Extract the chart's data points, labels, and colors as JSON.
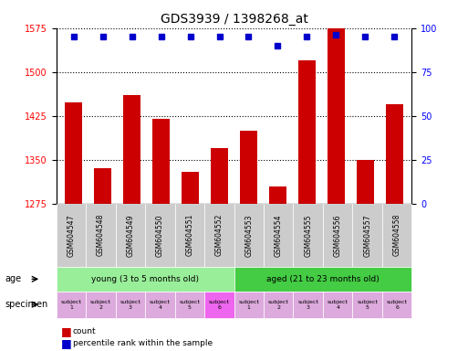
{
  "title": "GDS3939 / 1398268_at",
  "samples": [
    "GSM604547",
    "GSM604548",
    "GSM604549",
    "GSM604550",
    "GSM604551",
    "GSM604552",
    "GSM604553",
    "GSM604554",
    "GSM604555",
    "GSM604556",
    "GSM604557",
    "GSM604558"
  ],
  "counts": [
    1448,
    1335,
    1460,
    1420,
    1330,
    1370,
    1400,
    1305,
    1520,
    1580,
    1350,
    1445
  ],
  "percentile_ranks": [
    95,
    95,
    95,
    95,
    95,
    95,
    95,
    90,
    95,
    96,
    95,
    95
  ],
  "ylim_left": [
    1275,
    1575
  ],
  "ylim_right": [
    0,
    100
  ],
  "yticks_left": [
    1275,
    1350,
    1425,
    1500,
    1575
  ],
  "yticks_right": [
    0,
    25,
    50,
    75,
    100
  ],
  "bar_color": "#cc0000",
  "dot_color": "#0000cc",
  "age_groups": [
    {
      "label": "young (3 to 5 months old)",
      "start": 0,
      "end": 6,
      "color": "#99ee99"
    },
    {
      "label": "aged (21 to 23 months old)",
      "start": 6,
      "end": 12,
      "color": "#44cc44"
    }
  ],
  "specimen_colors": [
    "#ddaadd",
    "#ddaadd",
    "#ddaadd",
    "#ddaadd",
    "#ddaadd",
    "#ee66ee",
    "#ddaadd",
    "#ddaadd",
    "#ddaadd",
    "#ddaadd",
    "#ddaadd",
    "#ddaadd"
  ],
  "specimen_labels": [
    "subject\n1",
    "subject\n2",
    "subject\n3",
    "subject\n4",
    "subject\n5",
    "subject\n6",
    "subject\n1",
    "subject\n2",
    "subject\n3",
    "subject\n4",
    "subject\n5",
    "subject\n6"
  ],
  "xticklabel_bg": "#cccccc",
  "grid_color": "#000000"
}
